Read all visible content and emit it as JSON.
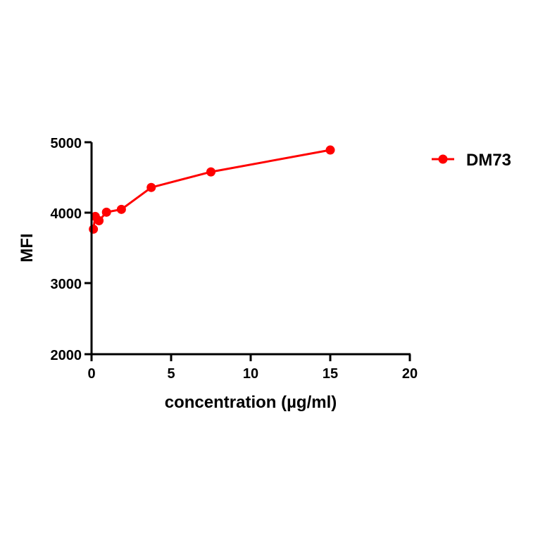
{
  "chart_data": {
    "type": "line",
    "title": "",
    "xlabel": "concentration (µg/ml)",
    "ylabel": "MFI",
    "xlim": [
      0,
      20
    ],
    "ylim": [
      2000,
      5000
    ],
    "xticks": [
      "0",
      "5",
      "10",
      "15",
      "20"
    ],
    "yticks": [
      "2000",
      "3000",
      "4000",
      "5000"
    ],
    "grid": false,
    "legend_position": "right-top",
    "series": [
      {
        "name": "DM73",
        "color": "#ff0000",
        "marker": "circle",
        "x": [
          0.117,
          0.234,
          0.469,
          0.938,
          1.875,
          3.75,
          7.5,
          15
        ],
        "y": [
          3770,
          3950,
          3890,
          4010,
          4050,
          4360,
          4580,
          4890
        ]
      }
    ]
  },
  "labels": {
    "xlabel": "concentration (µg/ml)",
    "ylabel": "MFI",
    "legend": "DM73",
    "xticks": [
      "0",
      "5",
      "10",
      "15",
      "20"
    ],
    "yticks": [
      "2000",
      "3000",
      "4000",
      "5000"
    ]
  }
}
